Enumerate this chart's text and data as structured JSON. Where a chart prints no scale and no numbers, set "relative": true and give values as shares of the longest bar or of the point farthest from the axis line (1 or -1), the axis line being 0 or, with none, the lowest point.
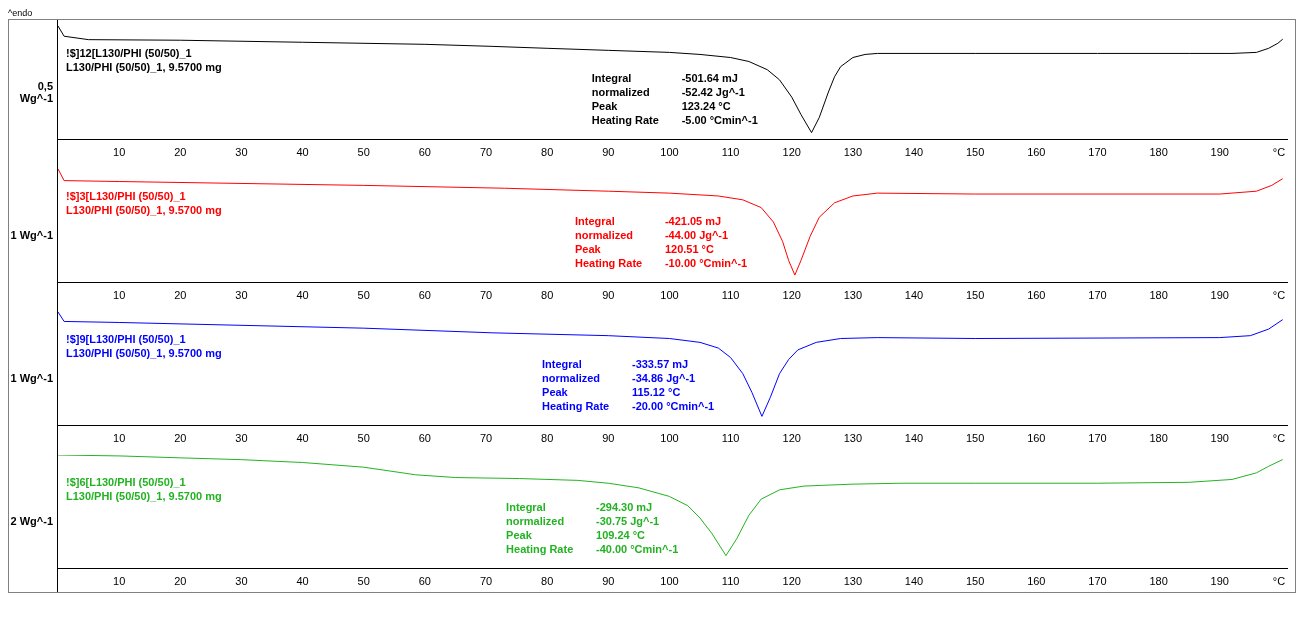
{
  "chart_data": [
    {
      "type": "line",
      "title": "^endo",
      "ylabel": "0,5 Wg^-1",
      "xlabel": "°C",
      "xlim": [
        0,
        201
      ],
      "xticks": [
        10,
        20,
        30,
        40,
        50,
        60,
        70,
        80,
        90,
        100,
        110,
        120,
        130,
        140,
        150,
        160,
        170,
        180,
        190
      ],
      "relative": true,
      "marker": "none",
      "annotations": [
        "!$]12[L130/PHI (50/50)_1",
        "L130/PHI (50/50)_1, 9.5700 mg",
        "Integral",
        "-501.64 mJ",
        "normalized",
        "-52.42 Jg^-1",
        "Peak",
        "123.24 °C",
        "Heating Rate",
        "-5.00 °Cmin^-1"
      ],
      "series": [
        {
          "color": "#000000",
          "x": [
            0,
            1,
            5,
            20,
            40,
            60,
            71,
            80,
            90,
            100,
            105,
            110,
            113,
            116,
            118,
            120,
            121.5,
            123.24,
            124.5,
            126,
            127,
            128,
            130,
            132,
            134,
            150,
            170,
            185,
            192,
            196,
            198,
            199.5,
            200.3
          ],
          "values": [
            1,
            0.91,
            0.88,
            0.875,
            0.857,
            0.839,
            0.821,
            0.804,
            0.786,
            0.768,
            0.75,
            0.723,
            0.688,
            0.616,
            0.527,
            0.375,
            0.223,
            0.063,
            0.196,
            0.42,
            0.554,
            0.643,
            0.723,
            0.75,
            0.759,
            0.759,
            0.759,
            0.759,
            0.759,
            0.768,
            0.804,
            0.848,
            0.884
          ]
        }
      ]
    },
    {
      "type": "line",
      "ylabel": "1 Wg^-1",
      "xlabel": "°C",
      "xlim": [
        0,
        201
      ],
      "xticks": [
        10,
        20,
        30,
        40,
        50,
        60,
        70,
        80,
        90,
        100,
        110,
        120,
        130,
        140,
        150,
        160,
        170,
        180,
        190
      ],
      "relative": true,
      "marker": "none",
      "annotations": [
        "!$]3[L130/PHI (50/50)_1",
        "L130/PHI (50/50)_1, 9.5700 mg",
        "Integral",
        "-421.05 mJ",
        "normalized",
        "-44.00 Jg^-1",
        "Peak",
        "120.51 °C",
        "Heating Rate",
        "-10.00 °Cmin^-1"
      ],
      "series": [
        {
          "color": "#ff0000",
          "x": [
            0,
            1,
            10,
            50,
            73,
            90,
            100,
            108,
            112,
            115,
            117,
            118.5,
            119.5,
            120.51,
            121.5,
            123,
            124.5,
            127,
            130,
            134,
            150,
            190,
            196,
            198.5,
            200.3
          ],
          "values": [
            1,
            0.898,
            0.89,
            0.856,
            0.831,
            0.805,
            0.788,
            0.763,
            0.729,
            0.661,
            0.534,
            0.364,
            0.195,
            0.068,
            0.195,
            0.407,
            0.576,
            0.703,
            0.763,
            0.788,
            0.78,
            0.78,
            0.805,
            0.856,
            0.915
          ]
        }
      ]
    },
    {
      "type": "line",
      "ylabel": "1 Wg^-1",
      "xlabel": "°C",
      "xlim": [
        0,
        201
      ],
      "xticks": [
        10,
        20,
        30,
        40,
        50,
        60,
        70,
        80,
        90,
        100,
        110,
        120,
        130,
        140,
        150,
        160,
        170,
        180,
        190
      ],
      "relative": true,
      "marker": "none",
      "annotations": [
        "!$]9[L130/PHI (50/50)_1",
        "L130/PHI (50/50)_1, 9.5700 mg",
        "Integral",
        "-333.57 mJ",
        "normalized",
        "-34.86 Jg^-1",
        "Peak",
        "115.12 °C",
        "Heating Rate",
        "-20.00 °Cmin^-1"
      ],
      "series": [
        {
          "color": "#0000ff",
          "x": [
            0,
            1,
            10,
            50,
            71,
            90,
            100,
            105,
            108,
            110,
            112,
            113.5,
            115.12,
            116.5,
            118,
            119.5,
            121,
            124,
            128,
            134,
            150,
            190,
            195,
            198,
            200.3
          ],
          "values": [
            1,
            0.917,
            0.908,
            0.858,
            0.817,
            0.792,
            0.767,
            0.733,
            0.683,
            0.6,
            0.458,
            0.292,
            0.083,
            0.25,
            0.458,
            0.583,
            0.667,
            0.733,
            0.767,
            0.775,
            0.767,
            0.775,
            0.792,
            0.85,
            0.933
          ]
        }
      ]
    },
    {
      "type": "line",
      "ylabel": "2 Wg^-1",
      "xlabel": "°C",
      "xlim": [
        0,
        201
      ],
      "xticks": [
        10,
        20,
        30,
        40,
        50,
        60,
        70,
        80,
        90,
        100,
        110,
        120,
        130,
        140,
        150,
        160,
        170,
        180,
        190
      ],
      "relative": true,
      "marker": "none",
      "annotations": [
        "!$]6[L130/PHI (50/50)_1",
        "L130/PHI (50/50)_1, 9.5700 mg",
        "Integral",
        "-294.30 mJ",
        "normalized",
        "-30.75 Jg^-1",
        "Peak",
        "109.24 °C",
        "Heating Rate",
        "-40.00 °Cmin^-1"
      ],
      "series": [
        {
          "color": "#22b322",
          "x": [
            0,
            10,
            20,
            30,
            40,
            50,
            58.5,
            65,
            75.5,
            85,
            90,
            95,
            100,
            103,
            105,
            107,
            109.24,
            111,
            113,
            115,
            118,
            122,
            130,
            138,
            150,
            170,
            185,
            192,
            196,
            198,
            200.3
          ],
          "values": [
            1,
            0.992,
            0.975,
            0.959,
            0.934,
            0.893,
            0.826,
            0.802,
            0.793,
            0.777,
            0.752,
            0.711,
            0.636,
            0.554,
            0.446,
            0.306,
            0.116,
            0.264,
            0.471,
            0.612,
            0.694,
            0.727,
            0.744,
            0.752,
            0.752,
            0.752,
            0.76,
            0.785,
            0.843,
            0.901,
            0.96
          ]
        }
      ]
    }
  ]
}
